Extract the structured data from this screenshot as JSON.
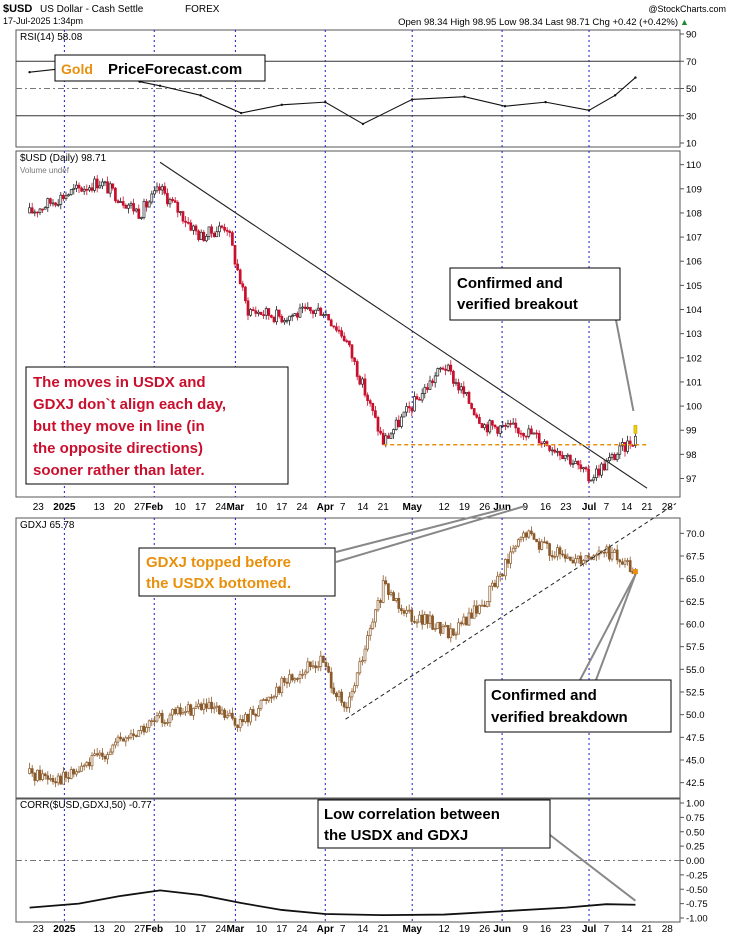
{
  "header": {
    "symbol": "$USD",
    "name": "US Dollar - Cash Settle",
    "exchange": "FOREX",
    "datetime": "17-Jul-2025 1:34pm",
    "watermark": "@StockCharts.com",
    "quote": "Open 98.34  High 98.95  Low 98.34  Last 98.71  Chg +0.42 (+0.42%)",
    "up_arrow": "▲"
  },
  "brand": {
    "gold": "Gold",
    "site": "PriceForecast.com"
  },
  "colors": {
    "up": "#222222",
    "down": "#c8102e",
    "gdxj": "#8b5a2b",
    "orange": "#e8900c",
    "grid": "#1a1adc",
    "red_text": "#c8102e"
  },
  "x_labels": [
    "23",
    "2025",
    "13",
    "20",
    "27",
    "Feb",
    "10",
    "17",
    "24",
    "Mar",
    "10",
    "17",
    "24",
    "Apr",
    "7",
    "14",
    "21",
    "May",
    "12",
    "19",
    "26",
    "Jun",
    "9",
    "16",
    "23",
    "Jul",
    "7",
    "14",
    "21",
    "28"
  ],
  "bold_labels": [
    "2025",
    "Feb",
    "Mar",
    "Apr",
    "May",
    "Jun",
    "Jul"
  ],
  "month_lines": [
    "2025",
    "Feb",
    "Mar",
    "Apr",
    "May",
    "Jun",
    "Jul"
  ],
  "panels": [
    {
      "id": "rsi",
      "label": "RSI(14) 58.08",
      "ticks": [
        "90",
        "70",
        "50",
        "30",
        "10"
      ]
    },
    {
      "id": "usd",
      "label": "$USD (Daily) 98.71",
      "sub": "Volume undef",
      "ticks": [
        "110",
        "109",
        "108",
        "107",
        "106",
        "105",
        "104",
        "103",
        "102",
        "101",
        "100",
        "99",
        "98",
        "97"
      ]
    },
    {
      "id": "gdxj",
      "label": "GDXJ 65.78",
      "ticks": [
        "70.0",
        "67.5",
        "65.0",
        "62.5",
        "60.0",
        "57.5",
        "55.0",
        "52.5",
        "50.0",
        "47.5",
        "45.0",
        "42.5"
      ]
    },
    {
      "id": "corr",
      "label": "CORR($USD,GDXJ,50) -0.77",
      "ticks": [
        "1.00",
        "0.75",
        "0.50",
        "0.25",
        "0.00",
        "-0.25",
        "-0.50",
        "-0.75",
        "-1.00"
      ]
    }
  ],
  "annotations": {
    "breakout": [
      "Confirmed and",
      "verified breakout"
    ],
    "moves": [
      "The moves in USDX and",
      "GDXJ don`t align each day,",
      "but they move in line (in",
      "the opposite directions)",
      "sooner rather than later."
    ],
    "topped": [
      "GDXJ topped before",
      "the USDX bottomed."
    ],
    "breakdown": [
      "Confirmed and",
      "verified breakdown"
    ],
    "corr": [
      "Low correlation between",
      "the USDX and GDXJ"
    ]
  },
  "chart_data": [
    {
      "type": "line",
      "title": "RSI(14) 58.08",
      "ylim": [
        10,
        90
      ],
      "reference_lines": [
        70,
        50,
        30
      ],
      "x": [
        "2024-12-20",
        "2025-01-02",
        "2025-01-13",
        "2025-01-27",
        "2025-02-03",
        "2025-02-17",
        "2025-03-03",
        "2025-03-17",
        "2025-04-01",
        "2025-04-14",
        "2025-05-01",
        "2025-05-19",
        "2025-06-02",
        "2025-06-16",
        "2025-07-01",
        "2025-07-10",
        "2025-07-17"
      ],
      "values": [
        62,
        65,
        68,
        55,
        52,
        45,
        32,
        38,
        40,
        24,
        42,
        44,
        37,
        40,
        34,
        45,
        58
      ]
    },
    {
      "type": "candlestick",
      "title": "$USD (Daily) 98.71",
      "ylim": [
        96.4,
        110.4
      ],
      "x": [
        "2024-12-20",
        "2025-01-02",
        "2025-01-13",
        "2025-01-27",
        "2025-02-03",
        "2025-02-17",
        "2025-02-26",
        "2025-03-05",
        "2025-03-17",
        "2025-03-31",
        "2025-04-08",
        "2025-04-21",
        "2025-05-12",
        "2025-05-26",
        "2025-06-09",
        "2025-06-23",
        "2025-07-01",
        "2025-07-17"
      ],
      "values": [
        108.0,
        108.8,
        109.3,
        108.0,
        109.0,
        107.0,
        107.5,
        104.0,
        103.7,
        104.0,
        102.8,
        98.5,
        101.7,
        99.2,
        99.0,
        98.0,
        97.0,
        98.71
      ],
      "trendline": [
        [
          "2025-02-03",
          110.1
        ],
        [
          "2025-07-21",
          96.6
        ]
      ],
      "support": 98.4
    },
    {
      "type": "candlestick",
      "title": "GDXJ 65.78",
      "ylim": [
        41.25,
        71.25
      ],
      "x": [
        "2024-12-20",
        "2025-01-02",
        "2025-01-20",
        "2025-02-03",
        "2025-02-17",
        "2025-03-03",
        "2025-03-17",
        "2025-03-31",
        "2025-04-08",
        "2025-04-21",
        "2025-05-01",
        "2025-05-15",
        "2025-05-26",
        "2025-06-02",
        "2025-06-09",
        "2025-06-23",
        "2025-07-07",
        "2025-07-17"
      ],
      "values": [
        43.5,
        43.0,
        47.0,
        49.5,
        51.0,
        49.0,
        53.5,
        56.0,
        50.0,
        64.0,
        61.0,
        59.0,
        62.5,
        66.5,
        70.0,
        67.0,
        68.0,
        65.78
      ],
      "trendline": [
        [
          "2025-04-08",
          49.5
        ],
        [
          "2025-07-31",
          73.3
        ]
      ]
    },
    {
      "type": "line",
      "title": "CORR($USD,GDXJ,50) -0.77",
      "ylim": [
        -1.0,
        1.0
      ],
      "x": [
        "2024-12-20",
        "2025-01-06",
        "2025-01-20",
        "2025-02-03",
        "2025-02-17",
        "2025-03-03",
        "2025-03-17",
        "2025-04-01",
        "2025-04-21",
        "2025-05-12",
        "2025-06-02",
        "2025-06-23",
        "2025-07-07",
        "2025-07-17"
      ],
      "values": [
        -0.82,
        -0.75,
        -0.62,
        -0.52,
        -0.6,
        -0.74,
        -0.86,
        -0.93,
        -0.95,
        -0.94,
        -0.88,
        -0.82,
        -0.76,
        -0.77
      ]
    }
  ]
}
